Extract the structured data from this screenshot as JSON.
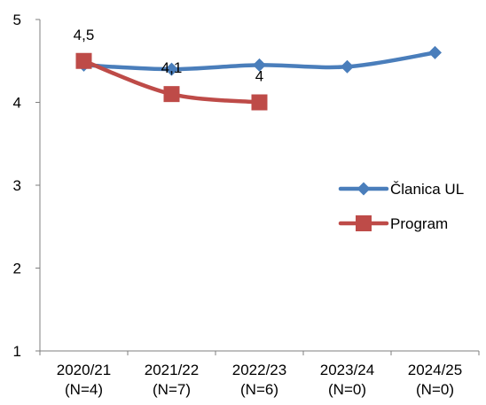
{
  "chart_data": {
    "type": "line",
    "title": "",
    "xlabel": "",
    "ylabel": "",
    "ylim": [
      1,
      5
    ],
    "yticks": [
      "1",
      "2",
      "3",
      "4",
      "5"
    ],
    "ytick_values": [
      1,
      2,
      3,
      4,
      5
    ],
    "categories": [
      [
        "2020/21",
        "(N=4)"
      ],
      [
        "2021/22",
        "(N=7)"
      ],
      [
        "2022/23",
        "(N=6)"
      ],
      [
        "2023/24",
        "(N=0)"
      ],
      [
        "2024/25",
        "(N=0)"
      ]
    ],
    "grid": false,
    "legend_position": "right",
    "series": [
      {
        "name": "Članica UL",
        "color": "#4a7ebb",
        "marker": "diamond",
        "values": [
          4.45,
          4.4,
          4.45,
          4.43,
          4.6
        ],
        "data_labels": [
          null,
          null,
          null,
          null,
          null
        ]
      },
      {
        "name": "Program",
        "color": "#be4b48",
        "marker": "square",
        "values": [
          4.5,
          4.1,
          4.0,
          null,
          null
        ],
        "data_labels": [
          "4,5",
          "4,1",
          "4",
          null,
          null
        ]
      }
    ]
  }
}
